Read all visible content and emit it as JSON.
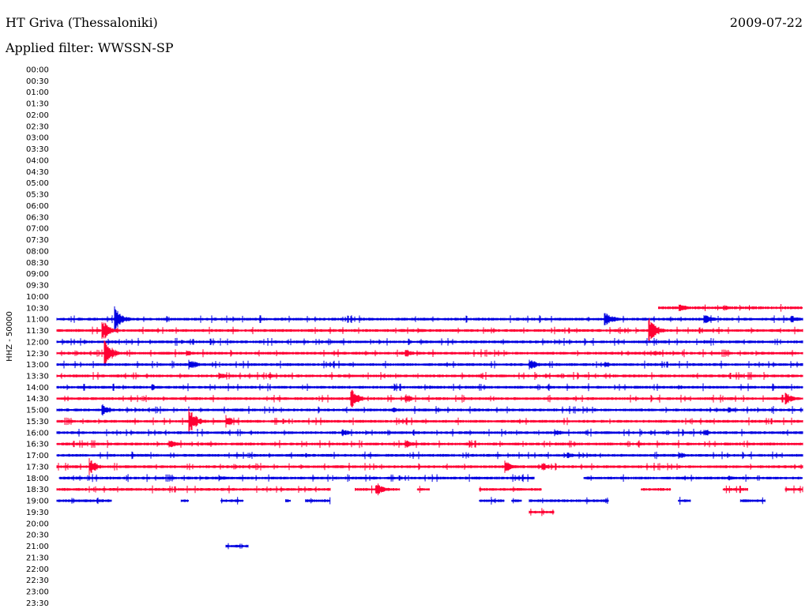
{
  "header": {
    "station": "HT Griva (Thessaloniki)",
    "date": "2009-07-22",
    "filter_label": "Applied filter: WWSSN-SP"
  },
  "colors": {
    "odd_row": "#0000e0",
    "even_row": "#ff0033",
    "background": "#ffffff"
  },
  "chart_data": {
    "type": "line",
    "ylabel": "HHZ - 50000",
    "row_labels": [
      "00:00",
      "00:30",
      "01:00",
      "01:30",
      "02:00",
      "02:30",
      "03:00",
      "03:30",
      "04:00",
      "04:30",
      "05:00",
      "05:30",
      "06:00",
      "06:30",
      "07:00",
      "07:30",
      "08:00",
      "08:30",
      "09:00",
      "09:30",
      "10:00",
      "10:30",
      "11:00",
      "11:30",
      "12:00",
      "12:30",
      "13:00",
      "13:30",
      "14:00",
      "14:30",
      "15:00",
      "15:30",
      "16:00",
      "16:30",
      "17:00",
      "17:30",
      "18:00",
      "18:30",
      "19:00",
      "19:30",
      "20:00",
      "20:30",
      "21:00",
      "21:30",
      "22:00",
      "22:30",
      "23:00",
      "23:30"
    ],
    "x_range_minutes": [
      0,
      30
    ],
    "traces": [
      {
        "row": "10:30",
        "color": "red",
        "segments": [
          [
            24.2,
            30
          ]
        ],
        "events": [
          [
            25.0,
            6
          ],
          [
            26.8,
            4
          ]
        ]
      },
      {
        "row": "11:00",
        "color": "blue",
        "segments": [
          [
            0,
            30
          ]
        ],
        "events": [
          [
            2.3,
            16
          ],
          [
            22.0,
            12
          ],
          [
            26.0,
            8
          ],
          [
            29.5,
            6
          ]
        ]
      },
      {
        "row": "11:30",
        "color": "red",
        "segments": [
          [
            0,
            30
          ]
        ],
        "events": [
          [
            1.8,
            14
          ],
          [
            23.8,
            16
          ],
          [
            14.5,
            4
          ]
        ]
      },
      {
        "row": "12:00",
        "color": "blue",
        "segments": [
          [
            0,
            30
          ]
        ],
        "events": [
          [
            5.0,
            3
          ],
          [
            26.0,
            3
          ]
        ]
      },
      {
        "row": "12:30",
        "color": "red",
        "segments": [
          [
            0,
            30
          ]
        ],
        "events": [
          [
            1.9,
            18
          ],
          [
            14.0,
            6
          ],
          [
            5.2,
            4
          ],
          [
            24.0,
            5
          ]
        ]
      },
      {
        "row": "13:00",
        "color": "blue",
        "segments": [
          [
            0,
            30
          ]
        ],
        "events": [
          [
            5.3,
            8
          ],
          [
            19.0,
            8
          ],
          [
            22.0,
            4
          ]
        ]
      },
      {
        "row": "13:30",
        "color": "red",
        "segments": [
          [
            0,
            30
          ]
        ],
        "events": [
          [
            6.5,
            5
          ],
          [
            8.5,
            4
          ]
        ]
      },
      {
        "row": "14:00",
        "color": "blue",
        "segments": [
          [
            0,
            30
          ]
        ],
        "events": [
          [
            3.8,
            4
          ],
          [
            15.0,
            3
          ],
          [
            25.0,
            3
          ]
        ]
      },
      {
        "row": "14:30",
        "color": "red",
        "segments": [
          [
            0,
            30
          ]
        ],
        "events": [
          [
            11.8,
            14
          ],
          [
            14.0,
            6
          ],
          [
            29.3,
            8
          ]
        ]
      },
      {
        "row": "15:00",
        "color": "blue",
        "segments": [
          [
            0,
            30
          ]
        ],
        "events": [
          [
            1.8,
            9
          ],
          [
            13.5,
            4
          ],
          [
            27.0,
            4
          ]
        ]
      },
      {
        "row": "15:30",
        "color": "red",
        "segments": [
          [
            0,
            30
          ]
        ],
        "events": [
          [
            5.3,
            16
          ],
          [
            6.8,
            8
          ]
        ]
      },
      {
        "row": "16:00",
        "color": "blue",
        "segments": [
          [
            0,
            30
          ]
        ],
        "events": [
          [
            11.5,
            5
          ],
          [
            20.0,
            5
          ],
          [
            26.0,
            5
          ]
        ]
      },
      {
        "row": "16:30",
        "color": "red",
        "segments": [
          [
            0,
            30
          ]
        ],
        "events": [
          [
            4.5,
            6
          ],
          [
            14.0,
            6
          ]
        ]
      },
      {
        "row": "17:00",
        "color": "blue",
        "segments": [
          [
            0,
            30
          ]
        ],
        "events": [
          [
            10.0,
            3
          ],
          [
            20.5,
            5
          ],
          [
            25.0,
            5
          ]
        ]
      },
      {
        "row": "17:30",
        "color": "red",
        "segments": [
          [
            0,
            30
          ]
        ],
        "events": [
          [
            1.3,
            10
          ],
          [
            18.0,
            8
          ],
          [
            19.5,
            6
          ]
        ]
      },
      {
        "row": "18:00",
        "color": "blue",
        "segments": [
          [
            0.1,
            19.2
          ],
          [
            21.2,
            30
          ]
        ],
        "events": [
          [
            6.5,
            4
          ],
          [
            27.0,
            5
          ]
        ]
      },
      {
        "row": "18:30",
        "color": "red",
        "segments": [
          [
            0,
            11.0
          ],
          [
            12.0,
            13.8
          ],
          [
            14.5,
            15.0
          ],
          [
            17.0,
            19.5
          ],
          [
            23.5,
            24.7
          ],
          [
            26.8,
            27.8
          ],
          [
            29.3,
            30
          ]
        ],
        "events": [
          [
            12.8,
            10
          ]
        ]
      },
      {
        "row": "19:00",
        "color": "blue",
        "segments": [
          [
            0,
            2.2
          ],
          [
            5.0,
            5.3
          ],
          [
            6.6,
            7.5
          ],
          [
            9.2,
            9.4
          ],
          [
            10.0,
            11.0
          ],
          [
            17.0,
            18.0
          ],
          [
            18.3,
            18.7
          ],
          [
            19.0,
            22.2
          ],
          [
            25.0,
            25.5
          ],
          [
            27.5,
            28.5
          ]
        ],
        "events": []
      },
      {
        "row": "19:30",
        "color": "red",
        "segments": [
          [
            19.0,
            20.0
          ]
        ],
        "events": []
      },
      {
        "row": "21:00",
        "color": "blue",
        "segments": [
          [
            6.8,
            7.7
          ]
        ],
        "events": []
      }
    ]
  }
}
